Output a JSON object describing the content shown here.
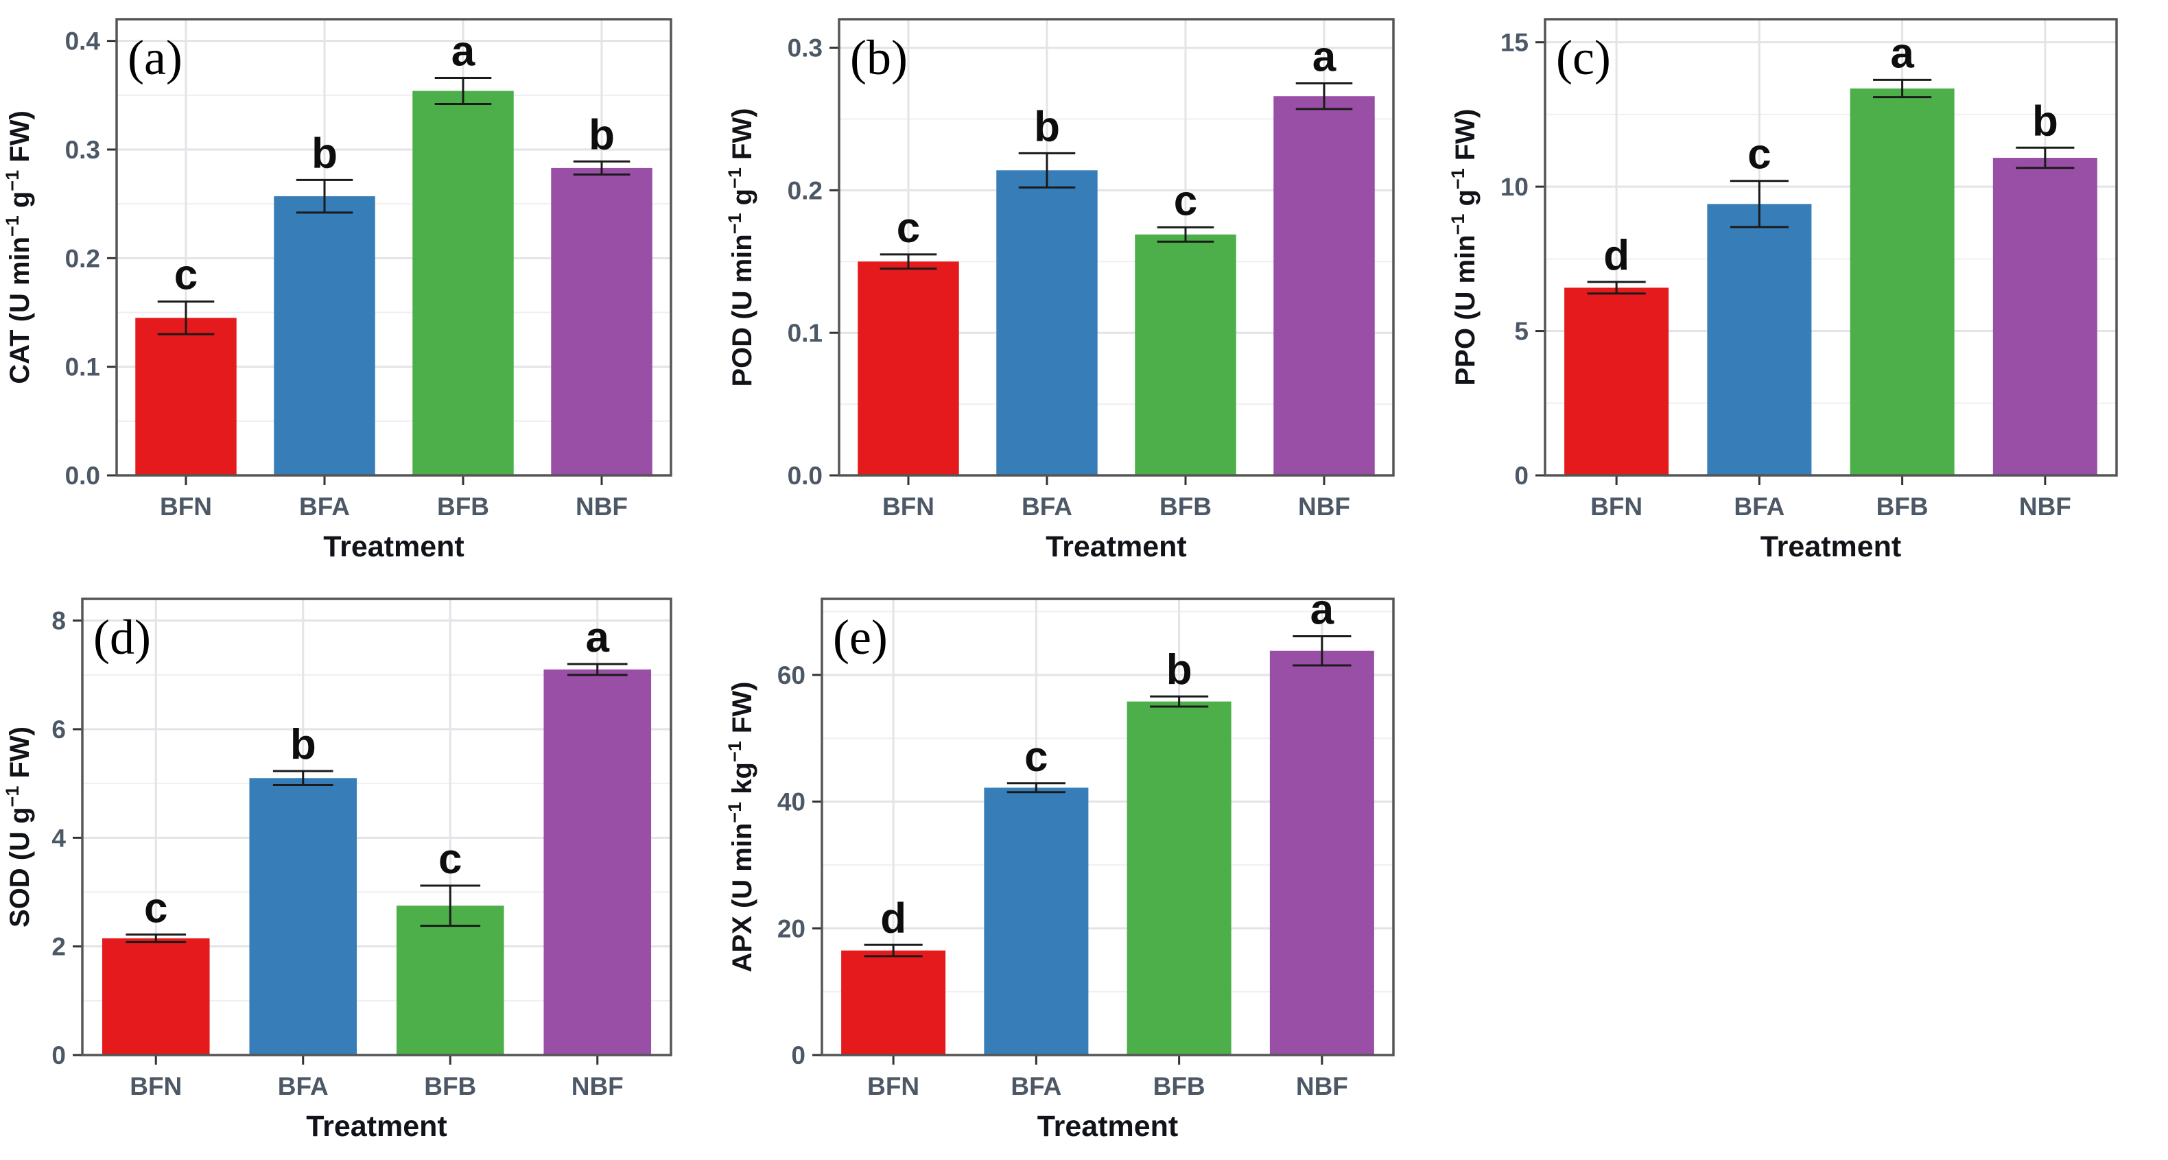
{
  "figure": {
    "background": "#ffffff",
    "treatments": [
      "BFN",
      "BFA",
      "BFB",
      "NBF"
    ],
    "bar_colors": [
      "#e41a1c",
      "#377eb8",
      "#4daf4a",
      "#994fa5"
    ],
    "style": {
      "tick_label_color": "#4c5866",
      "axis_title_color": "#111319",
      "panel_border_color": "#555555",
      "grid_major_color": "#e3e3e8",
      "grid_minor_color": "#efeff2",
      "error_bar_color": "#1a1a1a",
      "sig_letter_color": "#0d0d0d",
      "panel_tag_color": "#000000"
    }
  },
  "chart_data": [
    {
      "type": "bar",
      "panel_label": "(a)",
      "xlabel": "Treatment",
      "ylabel": "CAT (U min⁻¹ g⁻¹  FW)",
      "categories": [
        "BFN",
        "BFA",
        "BFB",
        "NBF"
      ],
      "values": [
        0.145,
        0.257,
        0.354,
        0.283
      ],
      "errors": [
        0.015,
        0.015,
        0.012,
        0.006
      ],
      "sig_letters": [
        "c",
        "b",
        "a",
        "b"
      ],
      "yticks": [
        0,
        0.1,
        0.2,
        0.3,
        0.4
      ],
      "ytick_labels": [
        "0.0",
        "0.1",
        "0.2",
        "0.3",
        "0.4"
      ],
      "ylim": [
        0,
        0.42
      ],
      "grid": true,
      "legend": "none"
    },
    {
      "type": "bar",
      "panel_label": "(b)",
      "xlabel": "Treatment",
      "ylabel": "POD (U min⁻¹ g⁻¹  FW)",
      "categories": [
        "BFN",
        "BFA",
        "BFB",
        "NBF"
      ],
      "values": [
        0.15,
        0.214,
        0.169,
        0.266
      ],
      "errors": [
        0.005,
        0.012,
        0.005,
        0.009
      ],
      "sig_letters": [
        "c",
        "b",
        "c",
        "a"
      ],
      "yticks": [
        0,
        0.1,
        0.2,
        0.3
      ],
      "ytick_labels": [
        "0.0",
        "0.1",
        "0.2",
        "0.3"
      ],
      "ylim": [
        0,
        0.32
      ],
      "grid": true,
      "legend": "none"
    },
    {
      "type": "bar",
      "panel_label": "(c)",
      "xlabel": "Treatment",
      "ylabel": "PPO (U min⁻¹ g⁻¹  FW)",
      "categories": [
        "BFN",
        "BFA",
        "BFB",
        "NBF"
      ],
      "values": [
        6.5,
        9.4,
        13.4,
        11.0
      ],
      "errors": [
        0.2,
        0.8,
        0.3,
        0.35
      ],
      "sig_letters": [
        "d",
        "c",
        "a",
        "b"
      ],
      "yticks": [
        0,
        5,
        10,
        15
      ],
      "ytick_labels": [
        "0",
        "5",
        "10",
        "15"
      ],
      "ylim": [
        0,
        15.8
      ],
      "grid": true,
      "legend": "none"
    },
    {
      "type": "bar",
      "panel_label": "(d)",
      "xlabel": "Treatment",
      "ylabel": "SOD (U g⁻¹  FW)",
      "categories": [
        "BFN",
        "BFA",
        "BFB",
        "NBF"
      ],
      "values": [
        2.15,
        5.1,
        2.75,
        7.1
      ],
      "errors": [
        0.07,
        0.13,
        0.37,
        0.1
      ],
      "sig_letters": [
        "c",
        "b",
        "c",
        "a"
      ],
      "yticks": [
        0,
        2,
        4,
        6,
        8
      ],
      "ytick_labels": [
        "0",
        "2",
        "4",
        "6",
        "8"
      ],
      "ylim": [
        0,
        8.4
      ],
      "grid": true,
      "legend": "none"
    },
    {
      "type": "bar",
      "panel_label": "(e)",
      "xlabel": "Treatment",
      "ylabel": "APX (U min⁻¹ kg⁻¹  FW)",
      "categories": [
        "BFN",
        "BFA",
        "BFB",
        "NBF"
      ],
      "values": [
        16.5,
        42.2,
        55.8,
        63.8
      ],
      "errors": [
        0.9,
        0.7,
        0.8,
        2.3
      ],
      "sig_letters": [
        "d",
        "c",
        "b",
        "a"
      ],
      "yticks": [
        0,
        20,
        40,
        60
      ],
      "ytick_labels": [
        "0",
        "20",
        "40",
        "60"
      ],
      "ylim": [
        0,
        72
      ],
      "grid": true,
      "legend": "none"
    }
  ]
}
